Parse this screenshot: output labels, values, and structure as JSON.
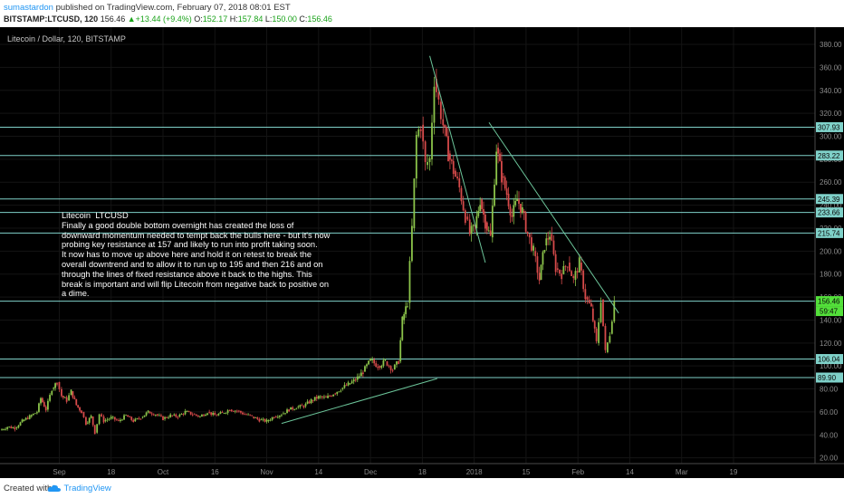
{
  "header": {
    "author": "sumastardon",
    "published": "published on TradingView.com, February 07, 2018 08:01 EST",
    "symbol": "BITSTAMP:LTCUSD, 120",
    "last": "156.46",
    "change": "+13.44 (+9.4%)",
    "o_label": "O:",
    "o": "152.17",
    "h_label": "H:",
    "h": "157.84",
    "l_label": "L:",
    "l": "150.00",
    "c_label": "C:",
    "c": "156.46"
  },
  "footer": {
    "created": "Created with",
    "brand": "TradingView"
  },
  "colors": {
    "background": "#000000",
    "level_line": "#7fd1c9",
    "trend_line": "#6cc59a",
    "candle_up": "#8bc34a",
    "candle_down": "#d64a4a",
    "highlight": "#53e03a"
  },
  "chart_data": {
    "type": "candlestick",
    "title": "Litecoin / Dollar, 120, BITSTAMP",
    "ylim": [
      15,
      395
    ],
    "y_ticks": [
      20,
      40,
      60,
      80,
      100,
      120,
      140,
      160,
      180,
      200,
      220,
      240,
      260,
      280,
      300,
      320,
      340,
      360,
      380
    ],
    "x_ticks": [
      "Sep",
      "18",
      "Oct",
      "16",
      "Nov",
      "14",
      "Dec",
      "18",
      "2018",
      "15",
      "Feb",
      "14",
      "Mar",
      "19"
    ],
    "x_tick_pos": [
      8,
      15,
      22,
      29,
      36,
      43,
      50,
      57,
      64,
      71,
      78,
      85,
      92,
      99
    ],
    "x_range": [
      0,
      110
    ],
    "levels": [
      {
        "value": 307.93,
        "label": "307.93"
      },
      {
        "value": 283.22,
        "label": "283.22"
      },
      {
        "value": 245.39,
        "label": "245.39"
      },
      {
        "value": 233.66,
        "label": "233.66"
      },
      {
        "value": 215.74,
        "label": "215.74"
      },
      {
        "value": 156.46,
        "label": "156.46"
      },
      {
        "value": 106.04,
        "label": "106.04"
      },
      {
        "value": 89.9,
        "label": "89.90"
      }
    ],
    "current_price_label": "59:47",
    "trendlines": [
      {
        "x": [
          38,
          59
        ],
        "y": [
          50,
          89
        ]
      },
      {
        "x": [
          58,
          65.5
        ],
        "y": [
          370,
          190
        ]
      },
      {
        "x": [
          66,
          83.5
        ],
        "y": [
          312,
          146
        ]
      }
    ],
    "close_path": [
      [
        0,
        44
      ],
      [
        1,
        47
      ],
      [
        2,
        46
      ],
      [
        3,
        52
      ],
      [
        4,
        56
      ],
      [
        5,
        60
      ],
      [
        5.5,
        72
      ],
      [
        6.2,
        62
      ],
      [
        7,
        80
      ],
      [
        7.7,
        86
      ],
      [
        8.3,
        74
      ],
      [
        9,
        70
      ],
      [
        9.6,
        78
      ],
      [
        10.3,
        66
      ],
      [
        11,
        60
      ],
      [
        11.6,
        50
      ],
      [
        12.3,
        56
      ],
      [
        12.8,
        42
      ],
      [
        13.4,
        58
      ],
      [
        14,
        52
      ],
      [
        15,
        55
      ],
      [
        16,
        52
      ],
      [
        17,
        57
      ],
      [
        18,
        52
      ],
      [
        19,
        55
      ],
      [
        20,
        60
      ],
      [
        21,
        58
      ],
      [
        22,
        54
      ],
      [
        23,
        57
      ],
      [
        24,
        56
      ],
      [
        25,
        60
      ],
      [
        26,
        58
      ],
      [
        27,
        56
      ],
      [
        28,
        60
      ],
      [
        29,
        57
      ],
      [
        30,
        59
      ],
      [
        31,
        62
      ],
      [
        32,
        61
      ],
      [
        33,
        58
      ],
      [
        34,
        56
      ],
      [
        35,
        53
      ],
      [
        36,
        52
      ],
      [
        37,
        56
      ],
      [
        38,
        58
      ],
      [
        39,
        62
      ],
      [
        40,
        64
      ],
      [
        41,
        65
      ],
      [
        42,
        70
      ],
      [
        43,
        73
      ],
      [
        44,
        72
      ],
      [
        45,
        76
      ],
      [
        46,
        80
      ],
      [
        47,
        84
      ],
      [
        48,
        88
      ],
      [
        49,
        95
      ],
      [
        50,
        105
      ],
      [
        51,
        100
      ],
      [
        52,
        104
      ],
      [
        53,
        97
      ],
      [
        53.8,
        104
      ],
      [
        54.3,
        140
      ],
      [
        55,
        155
      ],
      [
        55.6,
        220
      ],
      [
        56.2,
        300
      ],
      [
        56.8,
        310
      ],
      [
        57.4,
        275
      ],
      [
        58,
        280
      ],
      [
        58.6,
        350
      ],
      [
        59.2,
        330
      ],
      [
        59.8,
        310
      ],
      [
        60.5,
        285
      ],
      [
        61.2,
        270
      ],
      [
        62,
        255
      ],
      [
        62.8,
        230
      ],
      [
        63.4,
        215
      ],
      [
        64.1,
        220
      ],
      [
        64.8,
        245
      ],
      [
        65.5,
        225
      ],
      [
        66.2,
        212
      ],
      [
        67,
        290
      ],
      [
        67.7,
        265
      ],
      [
        68.4,
        250
      ],
      [
        69.1,
        230
      ],
      [
        69.8,
        245
      ],
      [
        70.5,
        235
      ],
      [
        71.2,
        215
      ],
      [
        72,
        200
      ],
      [
        72.8,
        175
      ],
      [
        73.5,
        205
      ],
      [
        74.2,
        215
      ],
      [
        75,
        185
      ],
      [
        75.8,
        180
      ],
      [
        76.6,
        190
      ],
      [
        77.4,
        175
      ],
      [
        78.2,
        190
      ],
      [
        79,
        160
      ],
      [
        79.8,
        150
      ],
      [
        80.5,
        120
      ],
      [
        81.1,
        158
      ],
      [
        81.7,
        112
      ],
      [
        82.3,
        128
      ],
      [
        82.9,
        156
      ]
    ]
  },
  "note": {
    "title": "Litecoin  LTCUSD",
    "body": "Finally a good double bottom overnight has created the loss of downward momentum needed to tempt back the bulls here - but it's now probing key resistance at 157 and likely to run into profit taking soon.\nIt now has to move up above here and hold it on retest to break the overall downtrend and to allow it to run up to 195 and then 216 and on through the lines of fixed resistance above it back to the highs. This break is important and will flip Litecoin from negative back to positive on a dime."
  }
}
